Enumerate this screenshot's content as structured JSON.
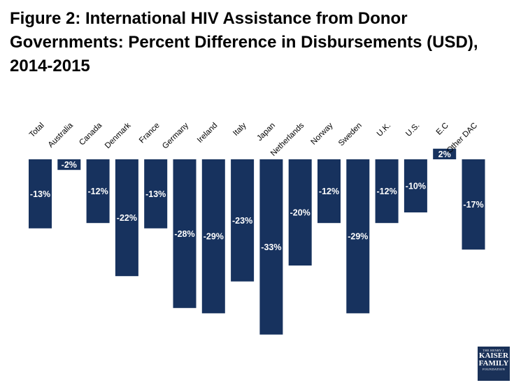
{
  "title_lines": [
    "Figure 2: International HIV Assistance from Donor",
    "Governments: Percent Difference in Disbursements (USD),",
    "2014-2015"
  ],
  "logo": {
    "line1": "THE HENRY J.",
    "line2": "KAISER",
    "line3": "FAMILY",
    "line4": "FOUNDATION"
  },
  "colors": {
    "bar": "#17325e",
    "label": "#ffffff",
    "category": "#000000"
  },
  "chart_data": {
    "type": "bar",
    "title": "Figure 2: International HIV Assistance from Donor Governments: Percent Difference in Disbursements (USD), 2014-2015",
    "xlabel": "",
    "ylabel": "",
    "categories": [
      "Total",
      "Australia",
      "Canada",
      "Denmark",
      "France",
      "Germany",
      "Ireland",
      "Italy",
      "Japan",
      "Netherlands",
      "Norway",
      "Sweden",
      "U.K.",
      "U.S.",
      "E.C",
      "Other DAC"
    ],
    "values": [
      -13,
      -2,
      -12,
      -22,
      -13,
      -28,
      -29,
      -23,
      -33,
      -20,
      -12,
      -29,
      -12,
      -10,
      2,
      -17
    ],
    "data_labels": [
      "-13%",
      "-2%",
      "-12%",
      "-22%",
      "-13%",
      "-28%",
      "-29%",
      "-23%",
      "-33%",
      "-20%",
      "-12%",
      "-29%",
      "-12%",
      "-10%",
      "2%",
      "-17%"
    ],
    "ylim": [
      -33,
      2
    ],
    "grid": false,
    "legend": "none"
  }
}
